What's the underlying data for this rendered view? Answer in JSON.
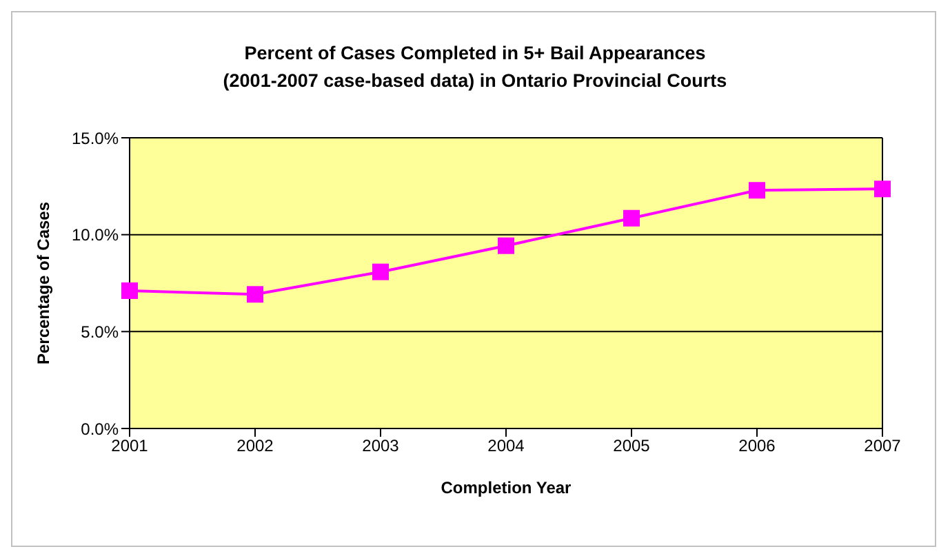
{
  "chart_data": {
    "type": "line",
    "title": "Percent of Cases Completed in 5+ Bail Appearances\n(2001-2007 case-based data) in Ontario Provincial Courts",
    "xlabel": "Completion Year",
    "ylabel": "Percentage of Cases",
    "categories": [
      "2001",
      "2002",
      "2003",
      "2004",
      "2005",
      "2006",
      "2007"
    ],
    "series": [
      {
        "color": "#ff00ff",
        "values": [
          7.11,
          6.92,
          8.08,
          9.43,
          10.85,
          12.29,
          12.36
        ]
      }
    ],
    "ylim": [
      0,
      15
    ],
    "yticks": [
      {
        "value": 0,
        "label": "0.0%"
      },
      {
        "value": 5,
        "label": "5.0%"
      },
      {
        "value": 10,
        "label": "10.0%"
      },
      {
        "value": 15,
        "label": "15.0%"
      }
    ],
    "grid": "y",
    "legend": false,
    "marker": "square",
    "line_style": "solid"
  }
}
